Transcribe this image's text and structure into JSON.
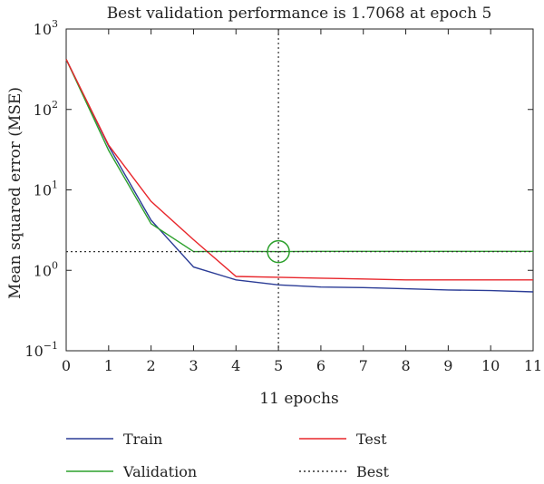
{
  "chart_data": {
    "type": "line",
    "title": "Best validation performance is 1.7068 at epoch 5",
    "xlabel": "11 epochs",
    "ylabel": "Mean squared error (MSE)",
    "xlim": [
      0,
      11
    ],
    "ylim": [
      0.1,
      1000
    ],
    "yscale": "log",
    "x_ticks": [
      "0",
      "1",
      "2",
      "3",
      "4",
      "5",
      "6",
      "7",
      "8",
      "9",
      "10",
      "11"
    ],
    "y_ticks": [
      {
        "base": "10",
        "exp": "−1",
        "value": 0.1
      },
      {
        "base": "10",
        "exp": "0",
        "value": 1
      },
      {
        "base": "10",
        "exp": "1",
        "value": 10
      },
      {
        "base": "10",
        "exp": "2",
        "value": 100
      },
      {
        "base": "10",
        "exp": "3",
        "value": 1000
      }
    ],
    "grid": false,
    "legend_position": "bottom",
    "series": [
      {
        "name": "Train",
        "color": "#2b3c96",
        "x": [
          0,
          1,
          2,
          3,
          4,
          5,
          6,
          7,
          8,
          9,
          10,
          11
        ],
        "y": [
          420,
          35,
          4.2,
          1.1,
          0.76,
          0.66,
          0.62,
          0.61,
          0.59,
          0.57,
          0.56,
          0.54
        ]
      },
      {
        "name": "Validation",
        "color": "#2ca02c",
        "x": [
          0,
          1,
          2,
          3,
          4,
          5,
          6,
          7,
          8,
          9,
          10,
          11
        ],
        "y": [
          420,
          31,
          3.8,
          1.7068,
          1.72,
          1.7068,
          1.72,
          1.72,
          1.72,
          1.72,
          1.72,
          1.72
        ]
      },
      {
        "name": "Test",
        "color": "#e8262b",
        "x": [
          0,
          1,
          2,
          3,
          4,
          5,
          6,
          7,
          8,
          9,
          10,
          11
        ],
        "y": [
          420,
          36,
          7.2,
          2.4,
          0.84,
          0.82,
          0.8,
          0.78,
          0.76,
          0.76,
          0.76,
          0.76
        ]
      }
    ],
    "best": {
      "name": "Best",
      "epoch": 5,
      "value": 1.7068,
      "color": "#333333"
    }
  }
}
